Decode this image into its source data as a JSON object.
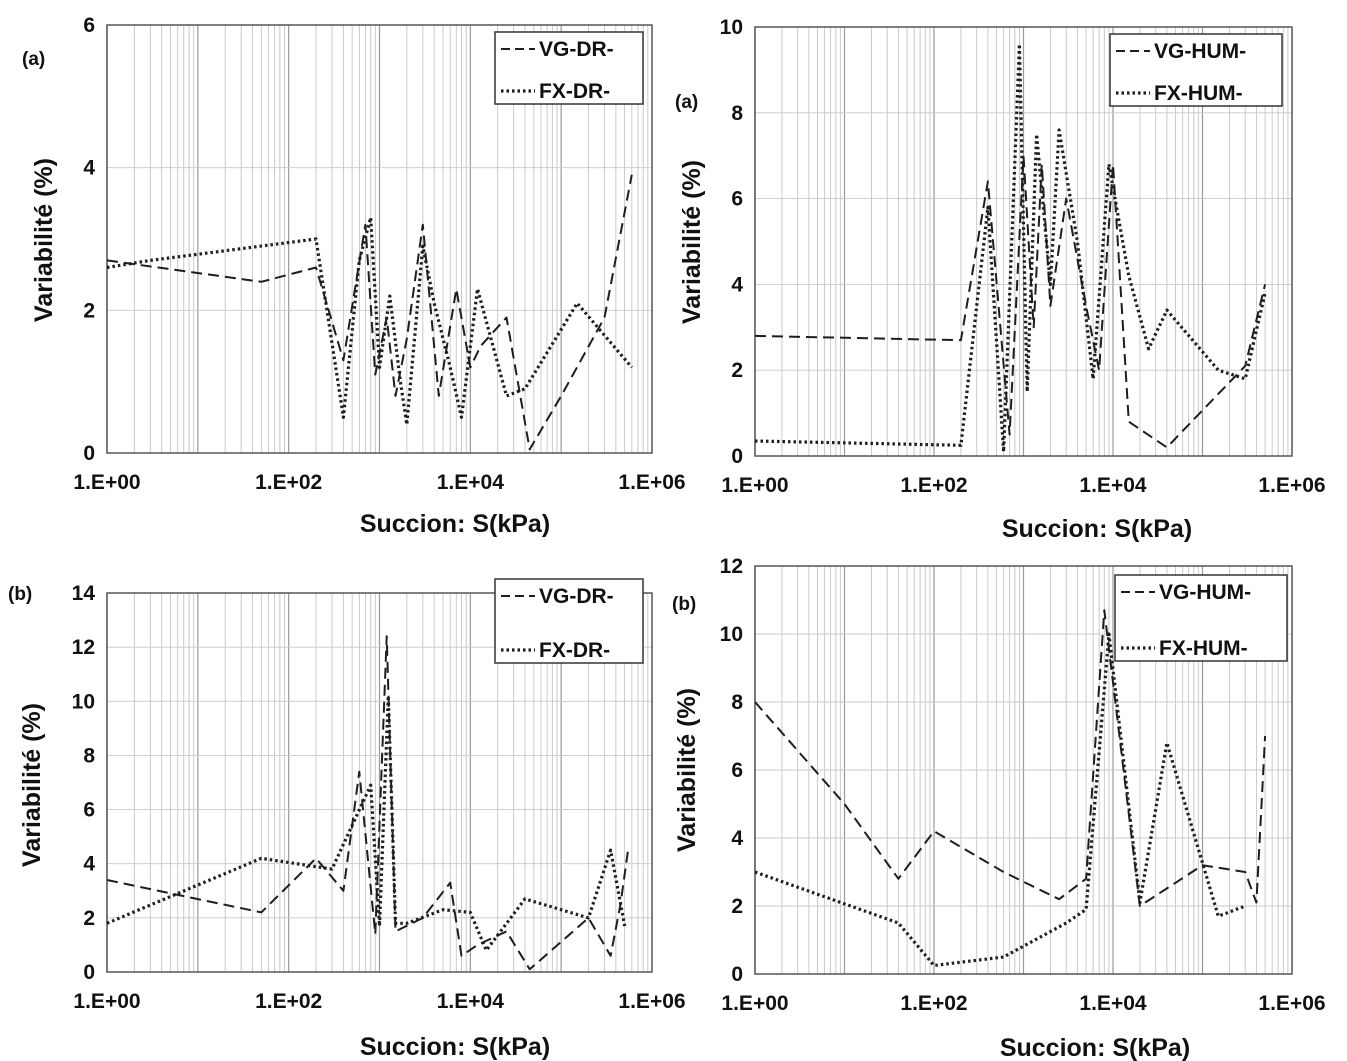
{
  "chart_data": [
    {
      "type": "line",
      "panel_label": "(a)",
      "xscale": "log",
      "xlabel": "Succion: S(kPa)",
      "ylabel": "Variabilité (%)",
      "xlim": [
        1,
        1000000
      ],
      "ylim": [
        0,
        6
      ],
      "xticks": [
        "1.E+00",
        "1.E+02",
        "1.E+04",
        "1.E+06"
      ],
      "yticks": [
        "0",
        "2",
        "4",
        "6"
      ],
      "grid": true,
      "legend_position": "top-right",
      "series": [
        {
          "name": "VG-DR-",
          "style": "dashed",
          "x": [
            1,
            50,
            200,
            400,
            700,
            900,
            1200,
            1500,
            2000,
            3000,
            4500,
            7000,
            10000,
            13000,
            25000,
            45000,
            100000,
            300000,
            600000
          ],
          "y": [
            2.7,
            2.4,
            2.6,
            1.3,
            3.2,
            1.1,
            1.9,
            0.8,
            1.6,
            3.2,
            0.8,
            2.3,
            1.2,
            1.5,
            1.9,
            0.05,
            0.8,
            1.9,
            3.9
          ]
        },
        {
          "name": "FX-DR-",
          "style": "dotted",
          "x": [
            1,
            3,
            200,
            400,
            600,
            800,
            1000,
            1300,
            1700,
            2000,
            3000,
            4000,
            6000,
            8000,
            12000,
            25000,
            40000,
            150000,
            600000
          ],
          "y": [
            2.6,
            2.7,
            3.0,
            0.5,
            2.7,
            3.3,
            1.2,
            2.2,
            1.0,
            0.4,
            2.9,
            2.1,
            1.2,
            0.5,
            2.3,
            0.8,
            0.9,
            2.1,
            1.2
          ]
        }
      ]
    },
    {
      "type": "line",
      "panel_label": "(a)",
      "xscale": "log",
      "xlabel": "Succion: S(kPa)",
      "ylabel": "Variabilité (%)",
      "xlim": [
        1,
        1000000
      ],
      "ylim": [
        0,
        10
      ],
      "xticks": [
        "1.E+00",
        "1.E+02",
        "1.E+04",
        "1.E+06"
      ],
      "yticks": [
        "0",
        "2",
        "4",
        "6",
        "8",
        "10"
      ],
      "grid": true,
      "legend_position": "top-right",
      "series": [
        {
          "name": "VG-HUM-",
          "style": "dashed",
          "x": [
            1,
            200,
            400,
            700,
            1000,
            1300,
            1600,
            2000,
            3000,
            5000,
            7000,
            10000,
            15000,
            40000,
            300000,
            500000
          ],
          "y": [
            2.8,
            2.7,
            6.4,
            0.5,
            7.0,
            3.0,
            6.8,
            3.5,
            6.0,
            3.5,
            2.0,
            6.8,
            0.8,
            0.2,
            2.1,
            4.0
          ]
        },
        {
          "name": "FX-HUM-",
          "style": "dotted",
          "x": [
            1,
            200,
            400,
            600,
            900,
            1100,
            1400,
            2000,
            2500,
            4000,
            6000,
            9000,
            15000,
            25000,
            40000,
            150000,
            300000,
            500000
          ],
          "y": [
            0.35,
            0.25,
            5.8,
            0.1,
            9.6,
            1.5,
            7.5,
            4.0,
            7.6,
            5.0,
            1.8,
            6.8,
            4.2,
            2.5,
            3.4,
            2.0,
            1.8,
            3.8
          ]
        }
      ]
    },
    {
      "type": "line",
      "panel_label": "(b)",
      "xscale": "log",
      "xlabel": "Succion: S(kPa)",
      "ylabel": "Variabilité (%)",
      "xlim": [
        1,
        1000000
      ],
      "ylim": [
        0,
        14
      ],
      "xticks": [
        "1.E+00",
        "1.E+02",
        "1.E+04",
        "1.E+06"
      ],
      "yticks": [
        "0",
        "2",
        "4",
        "6",
        "8",
        "10",
        "12",
        "14"
      ],
      "grid": true,
      "legend_position": "top-right",
      "series": [
        {
          "name": "VG-DR-",
          "style": "dashed",
          "x": [
            1,
            50,
            200,
            400,
            600,
            900,
            1200,
            1500,
            3000,
            6000,
            8000,
            12000,
            25000,
            45000,
            200000,
            350000,
            450000,
            550000
          ],
          "y": [
            3.4,
            2.2,
            4.2,
            3.0,
            7.4,
            1.4,
            12.4,
            1.5,
            2.0,
            3.3,
            0.6,
            1.0,
            1.5,
            0.1,
            2.0,
            0.6,
            2.5,
            4.6
          ]
        },
        {
          "name": "FX-DR-",
          "style": "dotted",
          "x": [
            1,
            50,
            300,
            800,
            1000,
            1250,
            1500,
            2000,
            5000,
            10000,
            15000,
            40000,
            200000,
            350000,
            500000
          ],
          "y": [
            1.8,
            4.2,
            3.8,
            6.9,
            1.7,
            10.2,
            1.8,
            1.8,
            2.3,
            2.2,
            0.8,
            2.7,
            2.0,
            4.5,
            1.7
          ]
        }
      ]
    },
    {
      "type": "line",
      "panel_label": "(b)",
      "xscale": "log",
      "xlabel": "Succion: S(kPa)",
      "ylabel": "Variabilité (%)",
      "xlim": [
        1,
        1000000
      ],
      "ylim": [
        0,
        12
      ],
      "xticks": [
        "1.E+00",
        "1.E+02",
        "1.E+04",
        "1.E+06"
      ],
      "yticks": [
        "0",
        "2",
        "4",
        "6",
        "8",
        "10",
        "12"
      ],
      "grid": true,
      "legend_position": "top-right",
      "series": [
        {
          "name": "VG-HUM-",
          "style": "dashed",
          "x": [
            1,
            10,
            40,
            100,
            600,
            2500,
            5000,
            8000,
            20000,
            100000,
            300000,
            400000,
            500000
          ],
          "y": [
            8.0,
            5.0,
            2.8,
            4.2,
            3.0,
            2.2,
            2.8,
            10.7,
            2.0,
            3.2,
            3.0,
            2.1,
            7.0
          ]
        },
        {
          "name": "FX-HUM-",
          "style": "dotted",
          "x": [
            1,
            40,
            100,
            600,
            3000,
            5000,
            9000,
            20000,
            40000,
            150000,
            300000
          ],
          "y": [
            3.0,
            1.5,
            0.25,
            0.5,
            1.5,
            1.9,
            10.0,
            2.1,
            6.8,
            1.7,
            2.0
          ]
        }
      ]
    }
  ]
}
